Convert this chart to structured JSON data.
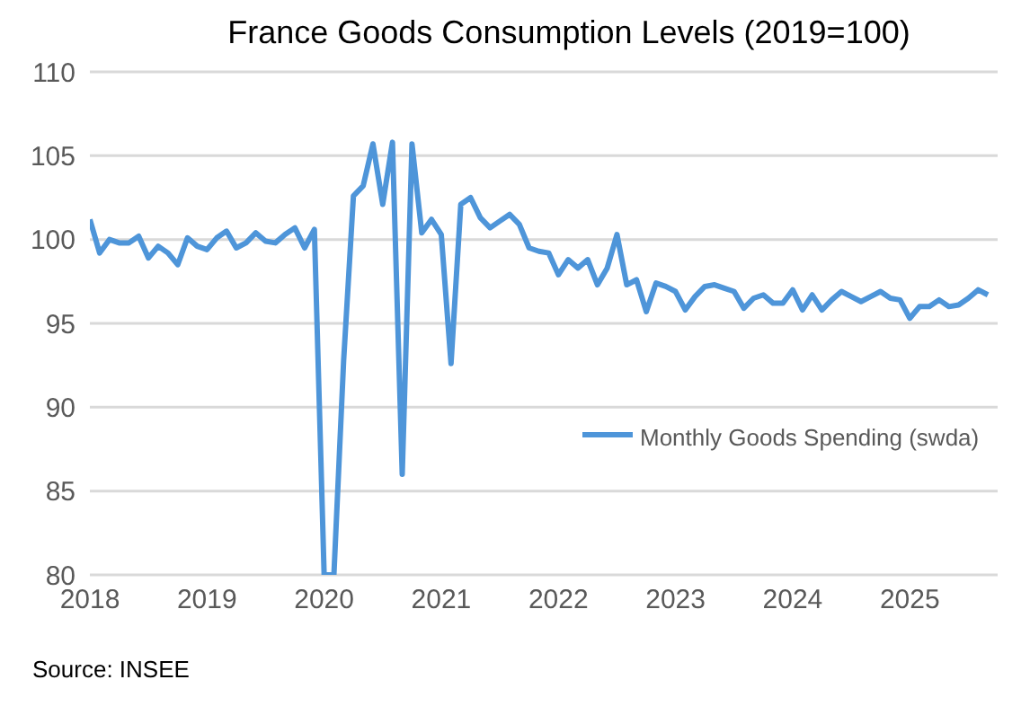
{
  "chart_data": {
    "type": "line",
    "title": "France Goods Consumption Levels (2019=100)",
    "x": [
      "2018-01",
      "2018-02",
      "2018-03",
      "2018-04",
      "2018-05",
      "2018-06",
      "2018-07",
      "2018-08",
      "2018-09",
      "2018-10",
      "2018-11",
      "2018-12",
      "2019-01",
      "2019-02",
      "2019-03",
      "2019-04",
      "2019-05",
      "2019-06",
      "2019-07",
      "2019-08",
      "2019-09",
      "2019-10",
      "2019-11",
      "2019-12",
      "2020-01",
      "2020-02",
      "2020-03",
      "2020-04",
      "2020-05",
      "2020-06",
      "2020-07",
      "2020-08",
      "2020-09",
      "2020-10",
      "2020-11",
      "2020-12",
      "2021-01",
      "2021-02",
      "2021-03",
      "2021-04",
      "2021-05",
      "2021-06",
      "2021-07",
      "2021-08",
      "2021-09",
      "2021-10",
      "2021-11",
      "2021-12",
      "2022-01",
      "2022-02",
      "2022-03",
      "2022-04",
      "2022-05",
      "2022-06",
      "2022-07",
      "2022-08",
      "2022-09",
      "2022-10",
      "2022-11",
      "2022-12",
      "2023-01",
      "2023-02",
      "2023-03",
      "2023-04",
      "2023-05",
      "2023-06",
      "2023-07",
      "2023-08",
      "2023-09",
      "2023-10",
      "2023-11",
      "2023-12",
      "2024-01",
      "2024-02",
      "2024-03",
      "2024-04",
      "2024-05",
      "2024-06",
      "2024-07",
      "2024-08",
      "2024-09",
      "2024-10",
      "2024-11",
      "2024-12",
      "2025-01",
      "2025-02",
      "2025-03",
      "2025-04",
      "2025-05",
      "2025-06",
      "2025-07",
      "2025-08",
      "2025-09"
    ],
    "series": [
      {
        "name": "Monthly Goods Spending (swda)",
        "color": "#4e95d9",
        "values": [
          101.2,
          99.2,
          100.0,
          99.8,
          99.8,
          100.2,
          98.9,
          99.6,
          99.2,
          98.5,
          100.1,
          99.6,
          99.4,
          100.1,
          100.5,
          99.5,
          99.8,
          100.4,
          99.9,
          99.8,
          100.3,
          100.7,
          99.5,
          100.6,
          80,
          80,
          92.8,
          102.6,
          103.2,
          105.7,
          102.1,
          105.8,
          86.0,
          105.7,
          100.4,
          101.2,
          100.3,
          92.6,
          102.1,
          102.5,
          101.3,
          100.7,
          101.1,
          101.5,
          100.9,
          99.5,
          99.3,
          99.2,
          97.9,
          98.8,
          98.3,
          98.8,
          97.3,
          98.3,
          100.3,
          97.3,
          97.6,
          95.7,
          97.4,
          97.2,
          96.9,
          95.8,
          96.6,
          97.2,
          97.3,
          97.1,
          96.9,
          95.9,
          96.5,
          96.7,
          96.2,
          96.2,
          97.0,
          95.8,
          96.7,
          95.8,
          96.4,
          96.9,
          96.6,
          96.3,
          96.6,
          96.9,
          96.5,
          96.4,
          95.3,
          96.0,
          96.0,
          96.4,
          96.0,
          96.1,
          96.5,
          97.0,
          96.7
        ]
      }
    ],
    "xlim": [
      "2018-01",
      "2025-10"
    ],
    "xticks": [
      "2018",
      "2019",
      "2020",
      "2021",
      "2022",
      "2023",
      "2024",
      "2025"
    ],
    "ylim": [
      80,
      110
    ],
    "yticks": [
      80,
      85,
      90,
      95,
      100,
      105,
      110
    ],
    "grid": "y",
    "legend": "right",
    "marker": "none",
    "line_style": "solid",
    "annotations": [
      "Source: INSEE"
    ]
  }
}
